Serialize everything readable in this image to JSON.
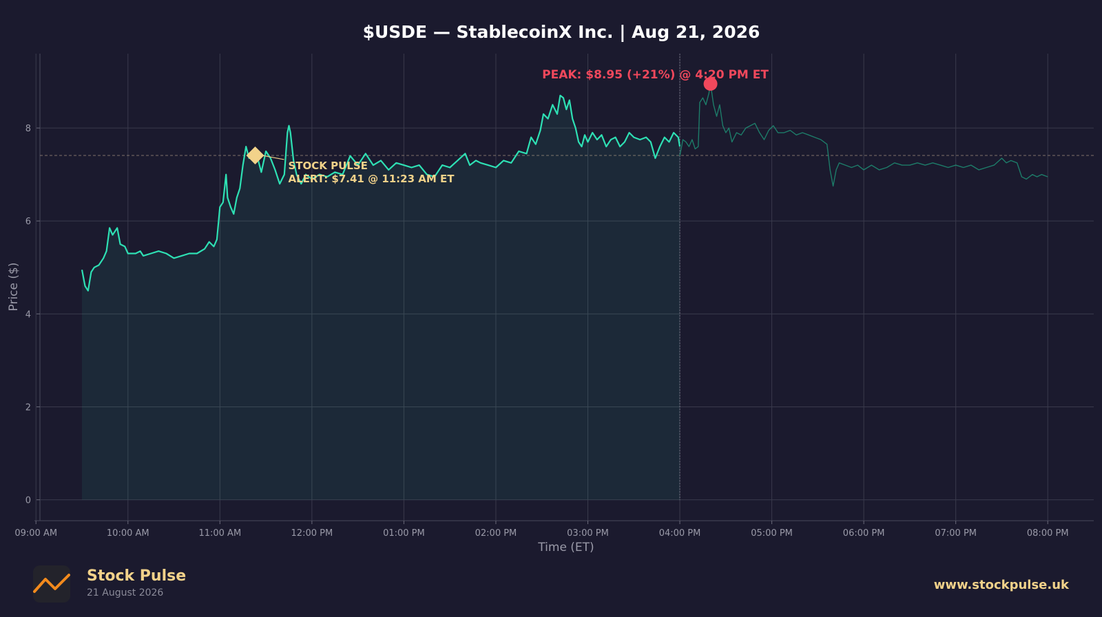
{
  "chart_data": {
    "type": "line",
    "title": "$USDE — StablecoinX Inc.  |  Aug 21, 2026",
    "xlabel": "Time (ET)",
    "ylabel": "Price ($)",
    "x_tick_labels": [
      "09:00 AM",
      "10:00 AM",
      "11:00 AM",
      "12:00 PM",
      "01:00 PM",
      "02:00 PM",
      "03:00 PM",
      "04:00 PM",
      "05:00 PM",
      "06:00 PM",
      "07:00 PM",
      "08:00 PM"
    ],
    "y_ticks": [
      0,
      2,
      4,
      6,
      8
    ],
    "xlim": [
      "09:00 AM",
      "08:30 PM"
    ],
    "ylim": [
      -0.45,
      9.6
    ],
    "grid": true,
    "series": [
      {
        "role": "regular session",
        "color": "#2ee0b4",
        "fill": true,
        "points": [
          [
            "09:30",
            4.95
          ],
          [
            "09:32",
            4.6
          ],
          [
            "09:34",
            4.5
          ],
          [
            "09:36",
            4.9
          ],
          [
            "09:38",
            5.0
          ],
          [
            "09:41",
            5.05
          ],
          [
            "09:44",
            5.2
          ],
          [
            "09:46",
            5.35
          ],
          [
            "09:48",
            5.85
          ],
          [
            "09:50",
            5.7
          ],
          [
            "09:53",
            5.85
          ],
          [
            "09:55",
            5.5
          ],
          [
            "09:58",
            5.45
          ],
          [
            "10:00",
            5.3
          ],
          [
            "10:05",
            5.3
          ],
          [
            "10:08",
            5.35
          ],
          [
            "10:10",
            5.25
          ],
          [
            "10:15",
            5.3
          ],
          [
            "10:20",
            5.35
          ],
          [
            "10:25",
            5.3
          ],
          [
            "10:30",
            5.2
          ],
          [
            "10:35",
            5.25
          ],
          [
            "10:40",
            5.3
          ],
          [
            "10:45",
            5.3
          ],
          [
            "10:50",
            5.4
          ],
          [
            "10:53",
            5.55
          ],
          [
            "10:56",
            5.45
          ],
          [
            "10:58",
            5.6
          ],
          [
            "11:00",
            6.3
          ],
          [
            "11:02",
            6.4
          ],
          [
            "11:04",
            7.0
          ],
          [
            "11:05",
            6.5
          ],
          [
            "11:07",
            6.3
          ],
          [
            "11:09",
            6.15
          ],
          [
            "11:11",
            6.5
          ],
          [
            "11:13",
            6.7
          ],
          [
            "11:15",
            7.2
          ],
          [
            "11:17",
            7.6
          ],
          [
            "11:19",
            7.35
          ],
          [
            "11:21",
            7.5
          ],
          [
            "11:23",
            7.41
          ],
          [
            "11:25",
            7.3
          ],
          [
            "11:27",
            7.05
          ],
          [
            "11:30",
            7.5
          ],
          [
            "11:33",
            7.35
          ],
          [
            "11:36",
            7.1
          ],
          [
            "11:39",
            6.8
          ],
          [
            "11:42",
            7.0
          ],
          [
            "11:44",
            7.9
          ],
          [
            "11:45",
            8.05
          ],
          [
            "11:46",
            7.9
          ],
          [
            "11:48",
            7.3
          ],
          [
            "11:50",
            7.0
          ],
          [
            "11:53",
            6.8
          ],
          [
            "11:56",
            7.0
          ],
          [
            "12:00",
            6.9
          ],
          [
            "12:05",
            7.0
          ],
          [
            "12:10",
            6.95
          ],
          [
            "12:15",
            7.05
          ],
          [
            "12:20",
            7.0
          ],
          [
            "12:25",
            7.4
          ],
          [
            "12:30",
            7.2
          ],
          [
            "12:35",
            7.45
          ],
          [
            "12:40",
            7.2
          ],
          [
            "12:45",
            7.3
          ],
          [
            "12:50",
            7.1
          ],
          [
            "12:55",
            7.25
          ],
          [
            "13:00",
            7.2
          ],
          [
            "13:05",
            7.15
          ],
          [
            "13:10",
            7.2
          ],
          [
            "13:15",
            7.0
          ],
          [
            "13:20",
            6.95
          ],
          [
            "13:25",
            7.2
          ],
          [
            "13:30",
            7.15
          ],
          [
            "13:35",
            7.3
          ],
          [
            "13:40",
            7.45
          ],
          [
            "13:43",
            7.2
          ],
          [
            "13:47",
            7.3
          ],
          [
            "13:50",
            7.25
          ],
          [
            "13:55",
            7.2
          ],
          [
            "14:00",
            7.15
          ],
          [
            "14:05",
            7.3
          ],
          [
            "14:10",
            7.25
          ],
          [
            "14:15",
            7.5
          ],
          [
            "14:20",
            7.45
          ],
          [
            "14:23",
            7.8
          ],
          [
            "14:26",
            7.65
          ],
          [
            "14:29",
            7.95
          ],
          [
            "14:31",
            8.3
          ],
          [
            "14:34",
            8.2
          ],
          [
            "14:37",
            8.5
          ],
          [
            "14:40",
            8.3
          ],
          [
            "14:42",
            8.7
          ],
          [
            "14:44",
            8.65
          ],
          [
            "14:46",
            8.4
          ],
          [
            "14:48",
            8.6
          ],
          [
            "14:50",
            8.2
          ],
          [
            "14:52",
            8.0
          ],
          [
            "14:54",
            7.7
          ],
          [
            "14:56",
            7.6
          ],
          [
            "14:58",
            7.85
          ],
          [
            "15:00",
            7.7
          ],
          [
            "15:03",
            7.9
          ],
          [
            "15:06",
            7.75
          ],
          [
            "15:09",
            7.85
          ],
          [
            "15:12",
            7.6
          ],
          [
            "15:15",
            7.75
          ],
          [
            "15:18",
            7.8
          ],
          [
            "15:21",
            7.6
          ],
          [
            "15:24",
            7.7
          ],
          [
            "15:27",
            7.9
          ],
          [
            "15:30",
            7.8
          ],
          [
            "15:34",
            7.75
          ],
          [
            "15:38",
            7.8
          ],
          [
            "15:41",
            7.7
          ],
          [
            "15:44",
            7.35
          ],
          [
            "15:47",
            7.6
          ],
          [
            "15:50",
            7.8
          ],
          [
            "15:53",
            7.7
          ],
          [
            "15:56",
            7.9
          ],
          [
            "15:59",
            7.8
          ],
          [
            "16:00",
            7.6
          ]
        ]
      },
      {
        "role": "after hours",
        "color": "#1f9d7e",
        "fill": false,
        "points": [
          [
            "16:00",
            7.4
          ],
          [
            "16:02",
            7.75
          ],
          [
            "16:04",
            7.7
          ],
          [
            "16:06",
            7.6
          ],
          [
            "16:08",
            7.75
          ],
          [
            "16:10",
            7.55
          ],
          [
            "16:12",
            7.6
          ],
          [
            "16:13",
            8.55
          ],
          [
            "16:15",
            8.65
          ],
          [
            "16:17",
            8.5
          ],
          [
            "16:19",
            8.75
          ],
          [
            "16:20",
            8.95
          ],
          [
            "16:22",
            8.5
          ],
          [
            "16:24",
            8.25
          ],
          [
            "16:26",
            8.5
          ],
          [
            "16:28",
            8.05
          ],
          [
            "16:30",
            7.9
          ],
          [
            "16:32",
            8.0
          ],
          [
            "16:34",
            7.7
          ],
          [
            "16:37",
            7.9
          ],
          [
            "16:40",
            7.85
          ],
          [
            "16:43",
            8.0
          ],
          [
            "16:46",
            8.05
          ],
          [
            "16:49",
            8.1
          ],
          [
            "16:52",
            7.9
          ],
          [
            "16:55",
            7.75
          ],
          [
            "16:58",
            7.95
          ],
          [
            "17:01",
            8.05
          ],
          [
            "17:04",
            7.9
          ],
          [
            "17:08",
            7.9
          ],
          [
            "17:12",
            7.95
          ],
          [
            "17:16",
            7.85
          ],
          [
            "17:20",
            7.9
          ],
          [
            "17:24",
            7.85
          ],
          [
            "17:28",
            7.8
          ],
          [
            "17:32",
            7.75
          ],
          [
            "17:36",
            7.65
          ],
          [
            "17:38",
            7.1
          ],
          [
            "17:40",
            6.75
          ],
          [
            "17:42",
            7.1
          ],
          [
            "17:44",
            7.25
          ],
          [
            "17:48",
            7.2
          ],
          [
            "17:52",
            7.15
          ],
          [
            "17:56",
            7.2
          ],
          [
            "18:00",
            7.1
          ],
          [
            "18:05",
            7.2
          ],
          [
            "18:10",
            7.1
          ],
          [
            "18:15",
            7.15
          ],
          [
            "18:20",
            7.25
          ],
          [
            "18:25",
            7.2
          ],
          [
            "18:30",
            7.2
          ],
          [
            "18:35",
            7.25
          ],
          [
            "18:40",
            7.2
          ],
          [
            "18:45",
            7.25
          ],
          [
            "18:50",
            7.2
          ],
          [
            "18:55",
            7.15
          ],
          [
            "19:00",
            7.2
          ],
          [
            "19:05",
            7.15
          ],
          [
            "19:10",
            7.2
          ],
          [
            "19:15",
            7.1
          ],
          [
            "19:20",
            7.15
          ],
          [
            "19:25",
            7.2
          ],
          [
            "19:30",
            7.35
          ],
          [
            "19:33",
            7.25
          ],
          [
            "19:36",
            7.3
          ],
          [
            "19:40",
            7.25
          ],
          [
            "19:43",
            6.95
          ],
          [
            "19:46",
            6.9
          ],
          [
            "19:50",
            7.0
          ],
          [
            "19:53",
            6.95
          ],
          [
            "19:56",
            7.0
          ],
          [
            "20:00",
            6.95
          ]
        ]
      }
    ],
    "reference_line": {
      "y": 7.41,
      "style": "dashed"
    },
    "session_divider_x": "04:00 PM",
    "annotations": [
      {
        "kind": "alert",
        "x": "11:23",
        "y": 7.41,
        "line1": "STOCK PULSE",
        "line2": "ALERT: $7.41 @ 11:23 AM ET",
        "color": "#f2d28a"
      },
      {
        "kind": "peak",
        "x": "16:20",
        "y": 8.95,
        "text": "PEAK: $8.95 (+21%) @ 4:20 PM ET",
        "color": "#f0485c"
      }
    ]
  },
  "footer": {
    "brand": "Stock Pulse",
    "date": "21 August 2026",
    "url": "www.stockpulse.uk",
    "logo_icon": "trend-line-icon"
  },
  "colors": {
    "background": "#1b1a2e",
    "grid": "#3a3a4c",
    "text": "#ffffff",
    "muted": "#9a9aa8",
    "accent": "#f2d28a"
  }
}
